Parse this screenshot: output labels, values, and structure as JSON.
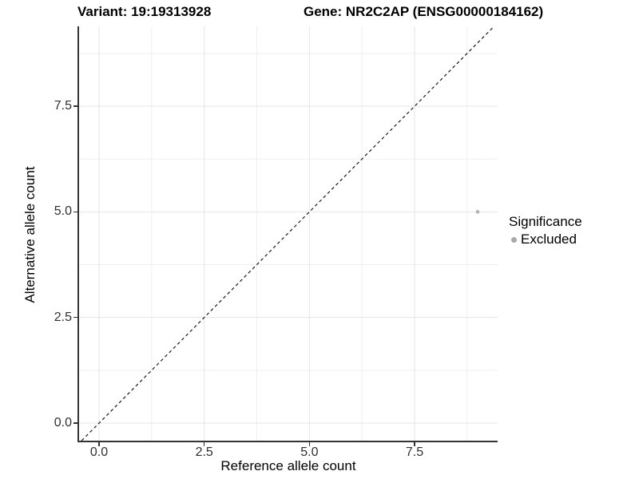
{
  "header": {
    "title_left": "Variant: 19:19313928",
    "title_right": "Gene: NR2C2AP (ENSG00000184162)"
  },
  "colors": {
    "background": "#ffffff",
    "axis_line": "#333333",
    "tick_text": "#303030",
    "grid_major": "#e4e4e4",
    "grid_minor": "#efefef",
    "identity_line": "#1a1a1a",
    "point": "#b3b3b3",
    "legend_key": "#a8a8a8"
  },
  "chart_data": {
    "type": "scatter",
    "title_left": "Variant: 19:19313928",
    "title_right": "Gene: NR2C2AP (ENSG00000184162)",
    "xlabel": "Reference allele count",
    "ylabel": "Alternative allele count",
    "xlim": [
      -0.475,
      9.474
    ],
    "ylim": [
      -0.416,
      9.39
    ],
    "x_major_ticks": [
      0,
      2.5,
      5,
      7.5
    ],
    "y_major_ticks": [
      0,
      2.5,
      5,
      7.5
    ],
    "x_tick_labels": [
      "0.0",
      "2.5",
      "5.0",
      "7.5"
    ],
    "y_tick_labels": [
      "0.0",
      "2.5",
      "5.0",
      "7.5"
    ],
    "x_minor_ticks": [
      1.25,
      3.75,
      6.25,
      8.75
    ],
    "y_minor_ticks": [
      1.25,
      3.75,
      6.25,
      8.75
    ],
    "grid": true,
    "legend_position": "right",
    "reference_line": {
      "kind": "identity",
      "style": "dashed"
    },
    "series": [
      {
        "name": "Excluded",
        "color": "#b3b3b3",
        "points": [
          {
            "x": 9,
            "y": 5
          }
        ]
      }
    ],
    "legend": {
      "title": "Significance",
      "entries": [
        {
          "label": "Excluded",
          "color": "#a8a8a8"
        }
      ]
    }
  }
}
